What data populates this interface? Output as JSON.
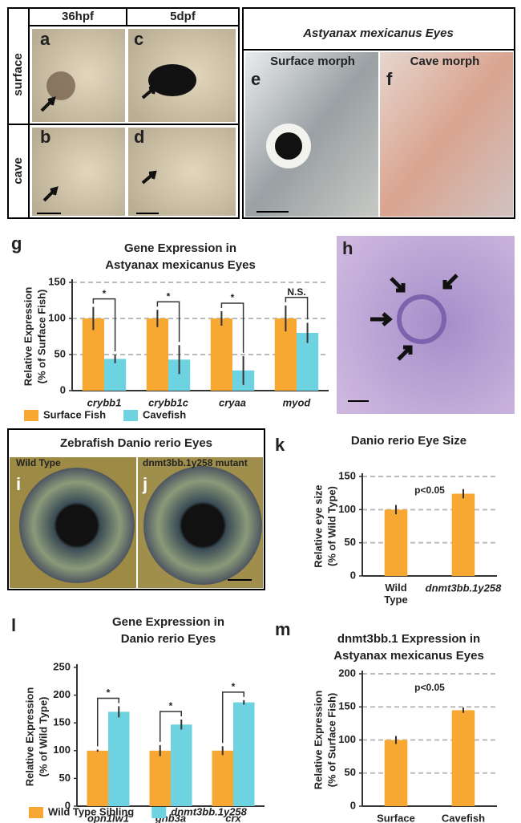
{
  "figure": {
    "header": [
      "36hpf",
      "5dpf"
    ],
    "rows": [
      "surface",
      "cave"
    ],
    "photo_letters": [
      "a",
      "c",
      "b",
      "d"
    ],
    "eyes_title": "Astyanax mexicanus Eyes",
    "morphs": [
      "Surface morph",
      "Cave morph"
    ],
    "morph_letters": [
      "e",
      "f"
    ],
    "h_letter": "h",
    "zebrafish_title": "Zebrafish Danio rerio Eyes",
    "zebrafish_labels": [
      "Wild Type",
      "dnmt3bb.1y258 mutant"
    ],
    "zebrafish_letters": [
      "i",
      "j"
    ]
  },
  "chart_data": [
    {
      "type": "bar",
      "panel": "g",
      "title": [
        "Gene Expression in",
        "Astyanax mexicanus Eyes"
      ],
      "ylabel": [
        "Relative Expression",
        "(% of Surface Fish)"
      ],
      "categories": [
        "crybb1",
        "crybb1c",
        "cryaa",
        "myod"
      ],
      "series": [
        {
          "name": "Surface Fish",
          "color": "#f7a832",
          "values": [
            100,
            100,
            100,
            100
          ],
          "errors": [
            16,
            12,
            10,
            18
          ]
        },
        {
          "name": "Cavefish",
          "color": "#6dd3e0",
          "values": [
            44,
            43,
            28,
            80
          ],
          "errors": [
            6,
            20,
            20,
            14
          ]
        }
      ],
      "annotations": [
        "*",
        "*",
        "*",
        "N.S."
      ],
      "ylim": [
        0,
        150
      ],
      "yticks": [
        0,
        50,
        100,
        150
      ],
      "grid": true
    },
    {
      "type": "bar",
      "panel": "k",
      "title": [
        "Danio rerio Eye Size"
      ],
      "ylabel": [
        "Relative eye size",
        "(% of Wild Type)"
      ],
      "categories": [
        "Wild Type",
        "dnmt3bb.1y258"
      ],
      "values": [
        100,
        124
      ],
      "errors": [
        7,
        7
      ],
      "color": "#f7a832",
      "annotation": "p<0.05",
      "ylim": [
        0,
        150
      ],
      "yticks": [
        0,
        50,
        100,
        150
      ],
      "grid": true
    },
    {
      "type": "bar",
      "panel": "l",
      "title": [
        "Gene Expression in",
        "Danio rerio Eyes"
      ],
      "ylabel": [
        "Relative Expression",
        "(% of Wild Type)"
      ],
      "categories": [
        "opn1lw1",
        "gnb3a",
        "crx"
      ],
      "series": [
        {
          "name": "Wild Type Sibling",
          "color": "#f7a832",
          "values": [
            100,
            100,
            100
          ],
          "errors": [
            2,
            10,
            8
          ]
        },
        {
          "name": "dnmt3bb.1y258",
          "color": "#6dd3e0",
          "values": [
            170,
            147,
            187
          ],
          "errors": [
            10,
            9,
            4
          ]
        }
      ],
      "annotations": [
        "*",
        "*",
        "*"
      ],
      "ylim": [
        0,
        250
      ],
      "yticks": [
        0,
        50,
        100,
        150,
        200,
        250
      ],
      "grid": false
    },
    {
      "type": "bar",
      "panel": "m",
      "title": [
        "dnmt3bb.1 Expression in",
        "Astyanax mexicanus Eyes"
      ],
      "ylabel": [
        "Relative Expression",
        "(% of Surface Fish)"
      ],
      "categories": [
        "Surface",
        "Cavefish"
      ],
      "values": [
        100,
        145
      ],
      "errors": [
        6,
        4
      ],
      "color": "#f7a832",
      "annotation": "p<0.05",
      "ylim": [
        0,
        200
      ],
      "yticks": [
        0,
        50,
        100,
        150,
        200
      ],
      "grid": true
    }
  ]
}
